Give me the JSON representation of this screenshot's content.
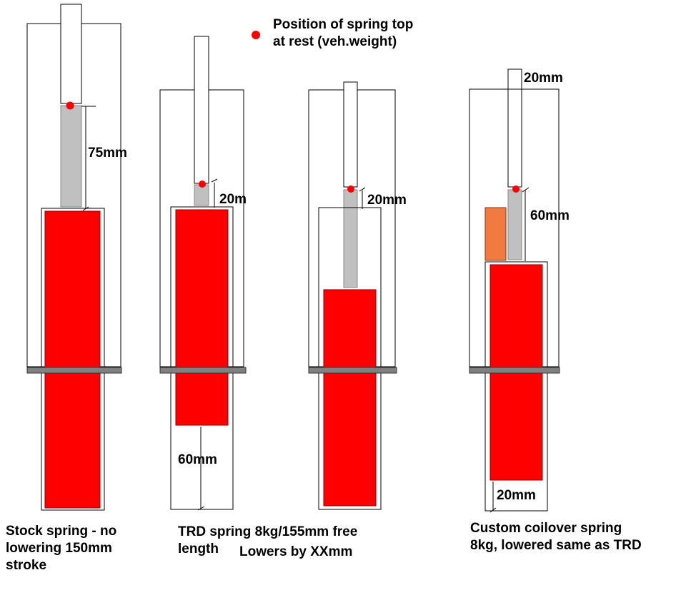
{
  "colors": {
    "spring": "#ff0000",
    "collar": "#c0c0c0",
    "spacer": "#f07a40",
    "marker": "#ff0000",
    "seat": "#808080",
    "outline": "#000000"
  },
  "legend": {
    "line1": "Position of spring top",
    "line2": "at rest (veh.weight)"
  },
  "diagrams": {
    "stock": {
      "dimension": "75mm",
      "caption_line1": "Stock spring - no",
      "caption_line2": "lowering 150mm",
      "caption_line3": "stroke"
    },
    "trd": {
      "dimension_top": "20m",
      "dimension_bottom": "60mm",
      "caption_line1": "TRD spring 8kg/155mm free",
      "caption_line2": "length",
      "caption_extra": "Lowers by XXmm"
    },
    "third": {
      "dimension": "20mm"
    },
    "custom": {
      "dimension_top": "20mm",
      "dimension_middle": "60mm",
      "dimension_bottom": "20mm",
      "caption_line1": "Custom coilover spring",
      "caption_line2": "8kg, lowered same as TRD"
    }
  }
}
